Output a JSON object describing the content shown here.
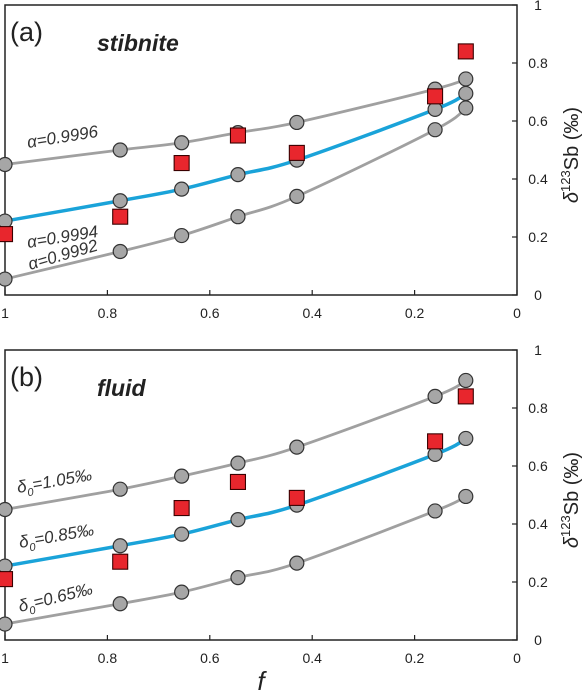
{
  "chart_data": [
    {
      "type": "scatter",
      "panel_label": "(a)",
      "title": "stibnite",
      "xlabel": "",
      "ylabel_main": "δ",
      "ylabel_sup": "123",
      "ylabel_rest": "Sb (‰)",
      "xlim": [
        1,
        0
      ],
      "ylim": [
        0,
        1
      ],
      "x_ticks": [
        "1",
        "0.8",
        "0.6",
        "0.4",
        "0.2",
        "0"
      ],
      "y_ticks": [
        "0",
        "0.2",
        "0.4",
        "0.6",
        "0.8",
        "1"
      ],
      "series": [
        {
          "name": "α=0.9996",
          "color": "#a0a0a0",
          "x": [
            1.0,
            0.775,
            0.655,
            0.545,
            0.43,
            0.16,
            0.1
          ],
          "y": [
            0.45,
            0.5,
            0.525,
            0.56,
            0.595,
            0.71,
            0.745
          ]
        },
        {
          "name": "α=0.9994",
          "color": "#1aa3d9",
          "x": [
            1.0,
            0.775,
            0.655,
            0.545,
            0.43,
            0.16,
            0.1
          ],
          "y": [
            0.255,
            0.325,
            0.365,
            0.415,
            0.465,
            0.64,
            0.695
          ]
        },
        {
          "name": "α=0.9992",
          "color": "#a0a0a0",
          "x": [
            1.0,
            0.775,
            0.655,
            0.545,
            0.43,
            0.16,
            0.1
          ],
          "y": [
            0.055,
            0.15,
            0.205,
            0.27,
            0.34,
            0.57,
            0.645
          ]
        },
        {
          "name": "",
          "marker": "square",
          "color": "#e8262d",
          "x": [
            1.0,
            0.775,
            0.655,
            0.545,
            0.43,
            0.16,
            0.1
          ],
          "y": [
            0.21,
            0.27,
            0.455,
            0.55,
            0.49,
            0.685,
            0.84
          ]
        }
      ]
    },
    {
      "type": "scatter",
      "panel_label": "(b)",
      "title": "fluid",
      "xlabel": "f",
      "ylabel_main": "δ",
      "ylabel_sup": "123",
      "ylabel_rest": "Sb (‰)",
      "xlim": [
        1,
        0
      ],
      "ylim": [
        0,
        1
      ],
      "x_ticks": [
        "1",
        "0.8",
        "0.6",
        "0.4",
        "0.2",
        "0"
      ],
      "y_ticks": [
        "0",
        "0.2",
        "0.4",
        "0.6",
        "0.8",
        "1"
      ],
      "series": [
        {
          "name": "δ0=1.05‰",
          "label_main": "δ",
          "label_sub": "0",
          "label_rest": "=1.05‰",
          "color": "#a0a0a0",
          "x": [
            1.0,
            0.775,
            0.655,
            0.545,
            0.43,
            0.16,
            0.1
          ],
          "y": [
            0.45,
            0.52,
            0.565,
            0.61,
            0.665,
            0.84,
            0.895
          ]
        },
        {
          "name": "δ0=0.85‰",
          "label_main": "δ",
          "label_sub": "0",
          "label_rest": "=0.85‰",
          "color": "#1aa3d9",
          "x": [
            1.0,
            0.775,
            0.655,
            0.545,
            0.43,
            0.16,
            0.1
          ],
          "y": [
            0.255,
            0.325,
            0.365,
            0.415,
            0.465,
            0.64,
            0.695
          ]
        },
        {
          "name": "δ0=0.65‰",
          "label_main": "δ",
          "label_sub": "0",
          "label_rest": "=0.65‰",
          "color": "#a0a0a0",
          "x": [
            1.0,
            0.775,
            0.655,
            0.545,
            0.43,
            0.16,
            0.1
          ],
          "y": [
            0.055,
            0.125,
            0.165,
            0.215,
            0.265,
            0.445,
            0.495
          ]
        },
        {
          "name": "",
          "marker": "square",
          "color": "#e8262d",
          "x": [
            1.0,
            0.775,
            0.655,
            0.545,
            0.43,
            0.16,
            0.1
          ],
          "y": [
            0.21,
            0.27,
            0.455,
            0.545,
            0.49,
            0.685,
            0.84
          ]
        }
      ]
    }
  ]
}
